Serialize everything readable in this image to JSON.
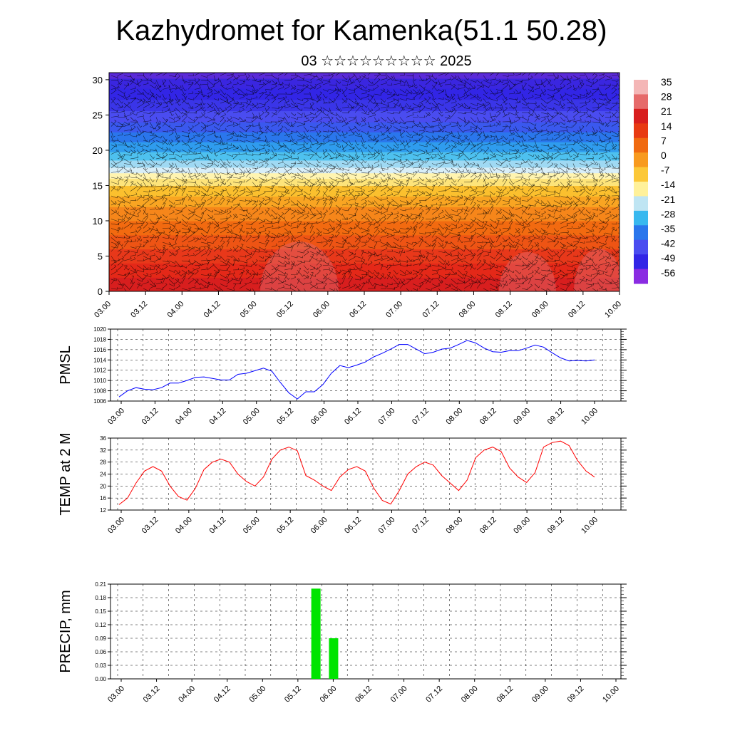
{
  "page": {
    "title": "Kazhydromet for Kamenka(51.1 50.28)",
    "subtitle": "03 ☆☆☆☆☆☆☆☆☆ 2025"
  },
  "time_ticks": [
    "03.00",
    "03.12",
    "04.00",
    "04.12",
    "05.00",
    "05.12",
    "06.00",
    "06.12",
    "07.00",
    "07.12",
    "08.00",
    "08.12",
    "09.00",
    "09.12",
    "10.00"
  ],
  "chart_data": [
    {
      "type": "heatmap",
      "name": "upper-air",
      "xlim": [
        0,
        168
      ],
      "ylim": [
        0,
        31
      ],
      "yticks": [
        0,
        5,
        10,
        15,
        20,
        25,
        30
      ],
      "x_tick_labels_ref": "time_ticks",
      "colorbar_labels": [
        "35",
        "28",
        "21",
        "14",
        "7",
        "0",
        "-7",
        "-14",
        "-21",
        "-28",
        "-35",
        "-42",
        "-49",
        "-56"
      ],
      "colorbar_colors": [
        "#f4b6b6",
        "#e66a6a",
        "#d81e1e",
        "#e83a12",
        "#f06a10",
        "#f89a1e",
        "#fcc838",
        "#fff19a",
        "#bfe5f3",
        "#38b8ef",
        "#2a76ec",
        "#4a4cf0",
        "#3225e6",
        "#8a2be2"
      ],
      "vectors": "wind barbs overlay"
    },
    {
      "type": "line",
      "name": "pmsl",
      "ylabel": "PMSL",
      "ylim": [
        1006,
        1020
      ],
      "yticks": [
        1006,
        1008,
        1010,
        1012,
        1014,
        1016,
        1018,
        1020
      ],
      "x_step_hours": 3,
      "color": "#0000ff",
      "values": [
        1006.8,
        1008,
        1008.6,
        1008.3,
        1008.2,
        1008.6,
        1009.5,
        1009.5,
        1010,
        1010.6,
        1010.7,
        1010.4,
        1010.1,
        1010.1,
        1011.2,
        1011.4,
        1011.9,
        1012.4,
        1011.8,
        1009.6,
        1007.6,
        1006.4,
        1007.8,
        1007.8,
        1009.2,
        1011.4,
        1012.9,
        1012.5,
        1013,
        1013.6,
        1014.6,
        1015.3,
        1016.1,
        1017,
        1017,
        1016.1,
        1015.2,
        1015.5,
        1016.1,
        1016.3,
        1017,
        1017.8,
        1017.3,
        1016.3,
        1015.6,
        1015.5,
        1015.8,
        1015.8,
        1016.3,
        1016.9,
        1016.5,
        1015.4,
        1014.4,
        1013.8,
        1013.9,
        1013.8,
        1014
      ]
    },
    {
      "type": "line",
      "name": "temp2m",
      "ylabel": "TEMP at 2 M",
      "ylim": [
        12,
        36
      ],
      "yticks": [
        12,
        16,
        20,
        24,
        28,
        32,
        36
      ],
      "x_step_hours": 3,
      "color": "#ff0000",
      "values": [
        13.8,
        16,
        21,
        25,
        26.5,
        25,
        20,
        16.5,
        15.3,
        19.3,
        25.5,
        28,
        29,
        28,
        24,
        21.5,
        20,
        23,
        29,
        32,
        33,
        31.8,
        23.5,
        22,
        20,
        18.5,
        23,
        25.5,
        26.5,
        25,
        19.3,
        15.2,
        14,
        18.5,
        24,
        26.5,
        28,
        27,
        23.5,
        21,
        18.5,
        22,
        29.5,
        32,
        33,
        31.5,
        26,
        23,
        21.2,
        24.5,
        33,
        34.5,
        35,
        33.5,
        28.5,
        25,
        23
      ]
    },
    {
      "type": "bar",
      "name": "precip",
      "ylabel": "PRECIP, mm",
      "ylim": [
        0,
        0.21
      ],
      "yticks": [
        "0.00",
        "0.03",
        "0.06",
        "0.09",
        "0.12",
        "0.15",
        "0.18",
        "0.21"
      ],
      "color": "#00e400",
      "bars": [
        {
          "x_hours": 66,
          "value": 0.2
        },
        {
          "x_hours": 72,
          "value": 0.09
        }
      ]
    }
  ]
}
